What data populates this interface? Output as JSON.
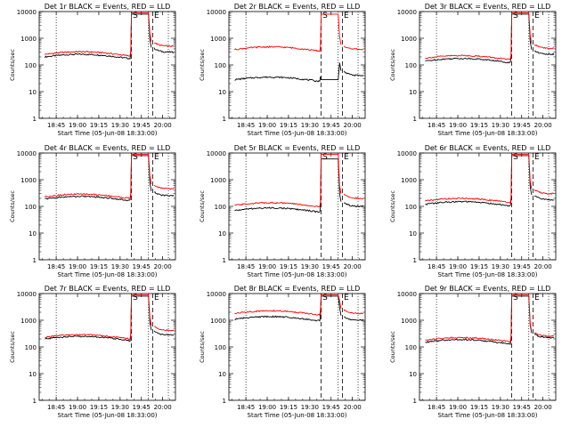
{
  "page": {
    "background": "#ffffff"
  },
  "chart_data": [
    {
      "type": "line",
      "title": "Det 1r BLACK = Events, RED = LLD",
      "ylabel": "Counts/sec",
      "xlabel": "Start Time (05-Jun-08 18:33:00)",
      "x_ticks": [
        "18:45",
        "19:00",
        "19:15",
        "19:30",
        "19:45",
        "20:00"
      ],
      "y_ticks": [
        "1",
        "10",
        "100",
        "1000",
        "10000"
      ],
      "yscale": "log",
      "ylim": [
        1,
        10000
      ],
      "markers": [
        {
          "label": "S",
          "x": "19:38"
        },
        {
          "label": "E",
          "x": "19:53"
        }
      ],
      "series": [
        {
          "color": "#000000",
          "values": {
            "pre": 200,
            "spike": 8000,
            "post": 300
          }
        },
        {
          "color": "#ff0000",
          "values": {
            "pre": 250,
            "spike": 9000,
            "post": 500
          }
        }
      ]
    },
    {
      "type": "line",
      "title": "Det 2r BLACK = Events, RED = LLD",
      "ylabel": "Counts/sec",
      "xlabel": "Start Time (05-Jun-08 18:33:00)",
      "x_ticks": [
        "18:45",
        "19:00",
        "19:15",
        "19:30",
        "19:45",
        "20:00"
      ],
      "y_ticks": [
        "1",
        "10",
        "100",
        "1000",
        "10000"
      ],
      "yscale": "log",
      "ylim": [
        1,
        10000
      ],
      "markers": [
        {
          "label": "S",
          "x": "19:38"
        },
        {
          "label": "E",
          "x": "19:53"
        }
      ],
      "series": [
        {
          "color": "#000000",
          "values": {
            "pre": 28,
            "spike": 28,
            "post": 40
          }
        },
        {
          "color": "#ff0000",
          "values": {
            "pre": 380,
            "spike": 8000,
            "post": 380
          }
        }
      ]
    },
    {
      "type": "line",
      "title": "Det 3r BLACK = Events, RED = LLD",
      "ylabel": "Counts/sec",
      "xlabel": "Start Time (05-Jun-08 18:33:00)",
      "x_ticks": [
        "18:45",
        "19:00",
        "19:15",
        "19:30",
        "19:45",
        "20:00"
      ],
      "y_ticks": [
        "1",
        "10",
        "100",
        "1000",
        "10000"
      ],
      "yscale": "log",
      "ylim": [
        1,
        10000
      ],
      "markers": [
        {
          "label": "S",
          "x": "19:38"
        },
        {
          "label": "E",
          "x": "19:53"
        }
      ],
      "series": [
        {
          "color": "#000000",
          "values": {
            "pre": 140,
            "spike": 8000,
            "post": 250
          }
        },
        {
          "color": "#ff0000",
          "values": {
            "pre": 180,
            "spike": 9000,
            "post": 420
          }
        }
      ]
    },
    {
      "type": "line",
      "title": "Det 4r BLACK = Events, RED = LLD",
      "ylabel": "Counts/sec",
      "xlabel": "Start Time (05-Jun-08 18:33:00)",
      "x_ticks": [
        "18:45",
        "19:00",
        "19:15",
        "19:30",
        "19:45",
        "20:00"
      ],
      "y_ticks": [
        "1",
        "10",
        "100",
        "1000",
        "10000"
      ],
      "yscale": "log",
      "ylim": [
        1,
        10000
      ],
      "markers": [
        {
          "label": "S",
          "x": "19:38"
        },
        {
          "label": "E",
          "x": "19:53"
        }
      ],
      "series": [
        {
          "color": "#000000",
          "values": {
            "pre": 190,
            "spike": 8000,
            "post": 250
          }
        },
        {
          "color": "#ff0000",
          "values": {
            "pre": 230,
            "spike": 9000,
            "post": 450
          }
        }
      ]
    },
    {
      "type": "line",
      "title": "Det 5r BLACK = Events, RED = LLD",
      "ylabel": "Counts/sec",
      "xlabel": "Start Time (05-Jun-08 18:33:00)",
      "x_ticks": [
        "18:45",
        "19:00",
        "19:15",
        "19:30",
        "19:45",
        "20:00"
      ],
      "y_ticks": [
        "1",
        "10",
        "100",
        "1000",
        "10000"
      ],
      "yscale": "log",
      "ylim": [
        1,
        10000
      ],
      "markers": [
        {
          "label": "S",
          "x": "19:38"
        },
        {
          "label": "E",
          "x": "19:53"
        }
      ],
      "series": [
        {
          "color": "#000000",
          "values": {
            "pre": 70,
            "spike": 6000,
            "post": 100
          }
        },
        {
          "color": "#ff0000",
          "values": {
            "pre": 110,
            "spike": 9000,
            "post": 200
          }
        }
      ]
    },
    {
      "type": "line",
      "title": "Det 6r BLACK = Events, RED = LLD",
      "ylabel": "Counts/sec",
      "xlabel": "Start Time (05-Jun-08 18:33:00)",
      "x_ticks": [
        "18:45",
        "19:00",
        "19:15",
        "19:30",
        "19:45",
        "20:00"
      ],
      "y_ticks": [
        "1",
        "10",
        "100",
        "1000",
        "10000"
      ],
      "yscale": "log",
      "ylim": [
        1,
        10000
      ],
      "markers": [
        {
          "label": "S",
          "x": "19:38"
        },
        {
          "label": "E",
          "x": "19:53"
        }
      ],
      "series": [
        {
          "color": "#000000",
          "values": {
            "pre": 120,
            "spike": 8000,
            "post": 180
          }
        },
        {
          "color": "#ff0000",
          "values": {
            "pre": 160,
            "spike": 9000,
            "post": 300
          }
        }
      ]
    },
    {
      "type": "line",
      "title": "Det 7r BLACK = Events, RED = LLD",
      "ylabel": "Counts/sec",
      "xlabel": "Start Time (05-Jun-08 18:33:00)",
      "x_ticks": [
        "18:45",
        "19:00",
        "19:15",
        "19:30",
        "19:45",
        "20:00"
      ],
      "y_ticks": [
        "1",
        "10",
        "100",
        "1000",
        "10000"
      ],
      "yscale": "log",
      "ylim": [
        1,
        10000
      ],
      "markers": [
        {
          "label": "S",
          "x": "19:38"
        },
        {
          "label": "E",
          "x": "19:53"
        }
      ],
      "series": [
        {
          "color": "#000000",
          "values": {
            "pre": 200,
            "spike": 8000,
            "post": 280
          }
        },
        {
          "color": "#ff0000",
          "values": {
            "pre": 230,
            "spike": 9000,
            "post": 420
          }
        }
      ]
    },
    {
      "type": "line",
      "title": "Det 8r BLACK = Events, RED = LLD",
      "ylabel": "Counts/sec",
      "xlabel": "Start Time (05-Jun-08 18:33:00)",
      "x_ticks": [
        "18:45",
        "19:00",
        "19:15",
        "19:30",
        "19:45",
        "20:00"
      ],
      "y_ticks": [
        "1",
        "10",
        "100",
        "1000",
        "10000"
      ],
      "yscale": "log",
      "ylim": [
        1,
        10000
      ],
      "markers": [
        {
          "label": "S",
          "x": "19:38"
        },
        {
          "label": "E",
          "x": "19:53"
        }
      ],
      "series": [
        {
          "color": "#000000",
          "values": {
            "pre": 1100,
            "spike": 8000,
            "post": 1000
          }
        },
        {
          "color": "#ff0000",
          "values": {
            "pre": 1800,
            "spike": 9000,
            "post": 1800
          }
        }
      ]
    },
    {
      "type": "line",
      "title": "Det 9r BLACK = Events, RED = LLD",
      "ylabel": "Counts/sec",
      "xlabel": "Start Time (05-Jun-08 18:33:00)",
      "x_ticks": [
        "18:45",
        "19:00",
        "19:15",
        "19:30",
        "19:45",
        "20:00"
      ],
      "y_ticks": [
        "1",
        "10",
        "100",
        "1000",
        "10000"
      ],
      "yscale": "log",
      "ylim": [
        1,
        10000
      ],
      "markers": [
        {
          "label": "S",
          "x": "19:38"
        },
        {
          "label": "E",
          "x": "19:53"
        }
      ],
      "series": [
        {
          "color": "#000000",
          "values": {
            "pre": 150,
            "spike": 8000,
            "post": 220
          }
        },
        {
          "color": "#ff0000",
          "values": {
            "pre": 180,
            "spike": 9000,
            "post": 250
          }
        }
      ]
    }
  ]
}
